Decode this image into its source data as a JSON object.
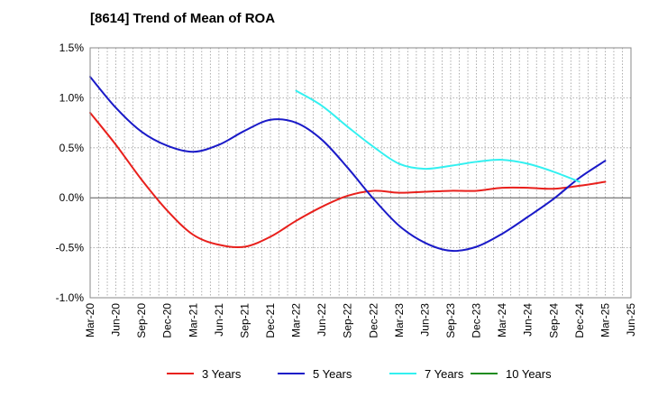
{
  "chart_data": {
    "type": "line",
    "title": "[8614]  Trend of Mean of ROA",
    "xlabel": "",
    "ylabel": "",
    "ylim": [
      -1.0,
      1.5
    ],
    "yticks": [
      "1.5%",
      "1.0%",
      "0.5%",
      "0.0%",
      "-0.5%",
      "-1.0%"
    ],
    "ytick_values": [
      1.5,
      1.0,
      0.5,
      0.0,
      -0.5,
      -1.0
    ],
    "x_labels": [
      "Mar-20",
      "Jun-20",
      "Sep-20",
      "Dec-20",
      "Mar-21",
      "Jun-21",
      "Sep-21",
      "Dec-21",
      "Mar-22",
      "Jun-22",
      "Sep-22",
      "Dec-22",
      "Mar-23",
      "Jun-23",
      "Sep-23",
      "Dec-23",
      "Mar-24",
      "Jun-24",
      "Sep-24",
      "Dec-24",
      "Mar-25",
      "Jun-25"
    ],
    "grid": true,
    "legend_position": "bottom",
    "series": [
      {
        "name": "3 Years",
        "color": "#e8201c",
        "start_index": 0,
        "values": [
          0.85,
          0.53,
          0.18,
          -0.13,
          -0.37,
          -0.47,
          -0.49,
          -0.39,
          -0.23,
          -0.09,
          0.02,
          0.07,
          0.05,
          0.06,
          0.07,
          0.07,
          0.1,
          0.1,
          0.09,
          0.12,
          0.16
        ]
      },
      {
        "name": "5 Years",
        "color": "#1a1ac8",
        "start_index": 0,
        "values": [
          1.21,
          0.9,
          0.66,
          0.52,
          0.46,
          0.53,
          0.67,
          0.78,
          0.75,
          0.58,
          0.3,
          -0.01,
          -0.28,
          -0.45,
          -0.53,
          -0.49,
          -0.36,
          -0.19,
          -0.01,
          0.2,
          0.37
        ]
      },
      {
        "name": "7 Years",
        "color": "#33f0f0",
        "start_index": 8,
        "values": [
          1.07,
          0.92,
          0.71,
          0.51,
          0.34,
          0.29,
          0.32,
          0.36,
          0.38,
          0.34,
          0.26,
          0.16
        ]
      },
      {
        "name": "10 Years",
        "color": "#1f8c1f",
        "start_index": 0,
        "values": []
      }
    ]
  }
}
